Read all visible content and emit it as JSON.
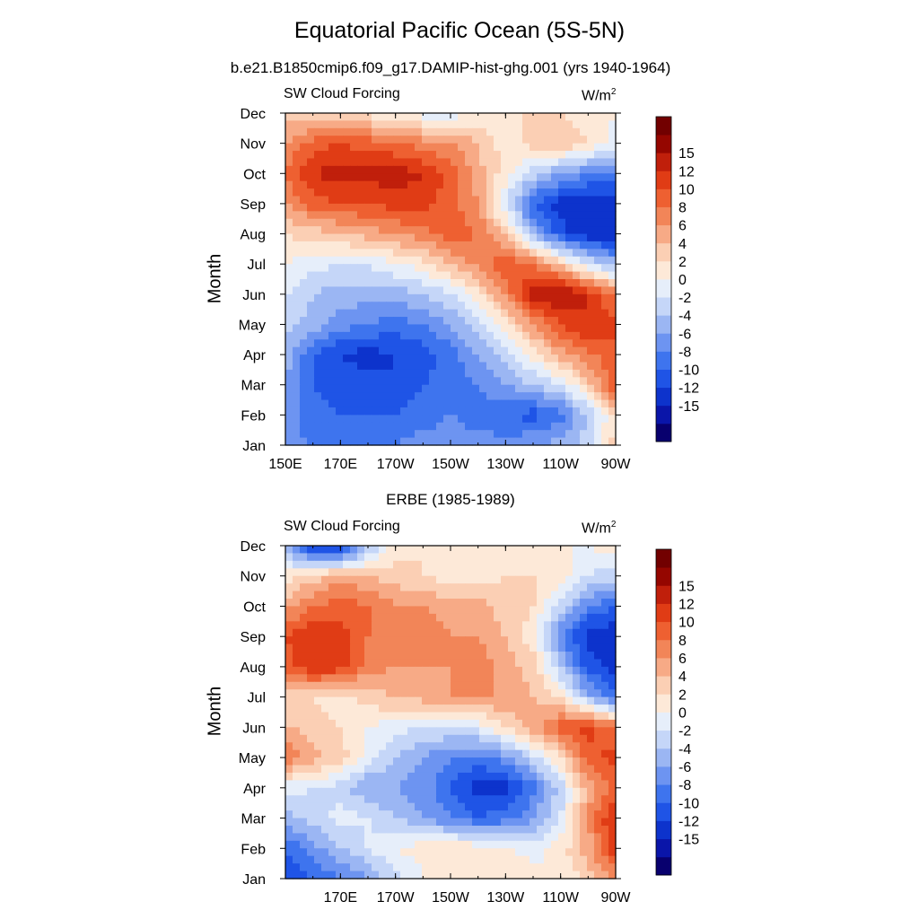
{
  "title": "Equatorial Pacific Ocean (5S-5N)",
  "chart_data": [
    {
      "type": "heatmap",
      "subtitle": "b.e21.B1850cmip6.f09_g17.DAMIP-hist-ghg.001 (yrs 1940-1964)",
      "variable": "SW Cloud Forcing",
      "units": "W/m",
      "units_sup": "2",
      "ylabel": "Month",
      "x_ticks": [
        "150E",
        "170E",
        "170W",
        "150W",
        "130W",
        "110W",
        "90W"
      ],
      "y_ticks": [
        "Jan",
        "Feb",
        "Mar",
        "Apr",
        "May",
        "Jun",
        "Jul",
        "Aug",
        "Sep",
        "Oct",
        "Nov",
        "Dec"
      ],
      "xlim_lon_east": [
        150,
        270
      ],
      "months": 12,
      "colorbar_labels": [
        "15",
        "12",
        "10",
        "8",
        "6",
        "4",
        "2",
        "0",
        "-2",
        "-4",
        "-6",
        "-8",
        "-10",
        "-12",
        "-15"
      ],
      "values_by_month": [
        [
          -6,
          -9,
          -9,
          -8,
          -8,
          -7,
          -7,
          -7,
          -7,
          -6,
          -5,
          -3,
          3
        ],
        [
          -7,
          -9,
          -10,
          -10,
          -10,
          -9,
          -8,
          -9,
          -10,
          -11,
          -9,
          -4,
          2
        ],
        [
          -6,
          -10,
          -11,
          -11,
          -12,
          -10,
          -9,
          -8,
          -6,
          -4,
          -2,
          3,
          10
        ],
        [
          -5,
          -10,
          -12,
          -13,
          -12,
          -11,
          -9,
          -6,
          -3,
          1,
          5,
          8,
          9
        ],
        [
          -3,
          -5,
          -7,
          -8,
          -9,
          -8,
          -6,
          -3,
          1,
          6,
          10,
          12,
          11
        ],
        [
          -2,
          -4,
          -5,
          -5,
          -5,
          -4,
          -2,
          1,
          7,
          13,
          15,
          12,
          7
        ],
        [
          0,
          -1,
          -2,
          -2,
          0,
          1,
          4,
          7,
          10,
          8,
          3,
          -2,
          -5
        ],
        [
          2,
          3,
          4,
          5,
          6,
          7,
          9,
          8,
          3,
          -5,
          -11,
          -14,
          -14
        ],
        [
          6,
          9,
          10,
          10,
          11,
          11,
          9,
          6,
          -2,
          -10,
          -13,
          -14,
          -15
        ],
        [
          8,
          12,
          13,
          13,
          13,
          12,
          9,
          5,
          1,
          -3,
          -6,
          -8,
          -7
        ],
        [
          6,
          9,
          10,
          9,
          8,
          7,
          6,
          4,
          1,
          3,
          4,
          2,
          -1
        ],
        [
          3,
          2,
          1,
          1,
          0,
          -1,
          -1,
          0,
          1,
          3,
          2,
          1,
          0
        ]
      ]
    },
    {
      "type": "heatmap",
      "subtitle": "ERBE (1985-1989)",
      "variable": "SW Cloud Forcing",
      "units": "W/m",
      "units_sup": "2",
      "ylabel": "Month",
      "x_ticks": [
        "170E",
        "170W",
        "150W",
        "130W",
        "110W",
        "90W"
      ],
      "y_ticks": [
        "Jan",
        "Feb",
        "Mar",
        "Apr",
        "May",
        "Jun",
        "Jul",
        "Aug",
        "Sep",
        "Oct",
        "Nov",
        "Dec"
      ],
      "xlim_lon_east": [
        150,
        270
      ],
      "months": 12,
      "colorbar_labels": [
        "15",
        "12",
        "10",
        "8",
        "6",
        "4",
        "2",
        "0",
        "-2",
        "-4",
        "-6",
        "-8",
        "-10",
        "-12",
        "-15"
      ],
      "values_by_month": [
        [
          -12,
          -10,
          -8,
          -6,
          -3,
          0,
          1,
          2,
          2,
          1,
          0,
          3,
          6
        ],
        [
          -10,
          -7,
          -4,
          -2,
          0,
          1,
          2,
          1,
          0,
          -1,
          1,
          5,
          12
        ],
        [
          -5,
          -3,
          -1,
          -2,
          -4,
          -6,
          -8,
          -10,
          -9,
          -6,
          -2,
          6,
          13
        ],
        [
          -1,
          -2,
          -3,
          -6,
          -6,
          -7,
          -10,
          -13,
          -13,
          -9,
          -3,
          5,
          9
        ],
        [
          8,
          5,
          3,
          -1,
          -4,
          -6,
          -8,
          -9,
          -7,
          -3,
          2,
          9,
          11
        ],
        [
          4,
          3,
          2,
          0,
          -1,
          -2,
          -2,
          -1,
          2,
          5,
          9,
          11,
          8
        ],
        [
          3,
          2,
          1,
          3,
          4,
          5,
          6,
          6,
          6,
          4,
          2,
          -5,
          -10
        ],
        [
          9,
          12,
          11,
          7,
          6,
          6,
          6,
          7,
          5,
          3,
          -4,
          -11,
          -13
        ],
        [
          10,
          12,
          11,
          8,
          7,
          7,
          6,
          6,
          4,
          1,
          -8,
          -13,
          -14
        ],
        [
          5,
          8,
          9,
          8,
          6,
          6,
          5,
          5,
          3,
          2,
          -3,
          -8,
          -10
        ],
        [
          1,
          3,
          5,
          4,
          3,
          2,
          1,
          1,
          2,
          2,
          1,
          -2,
          -3
        ],
        [
          -6,
          -13,
          -14,
          -5,
          1,
          2,
          2,
          2,
          1,
          1,
          0,
          0,
          1
        ]
      ]
    }
  ],
  "colors": {
    "levels": [
      "#08006e",
      "#0a15a9",
      "#0d33cc",
      "#1f54e6",
      "#3e74ee",
      "#6d94f1",
      "#9bb6f3",
      "#c5d6f8",
      "#e6eefa",
      "#fde9d8",
      "#fbcfb4",
      "#f7aa86",
      "#f28558",
      "#ee6031",
      "#e03c15",
      "#c01f0b",
      "#950600",
      "#720000"
    ]
  }
}
